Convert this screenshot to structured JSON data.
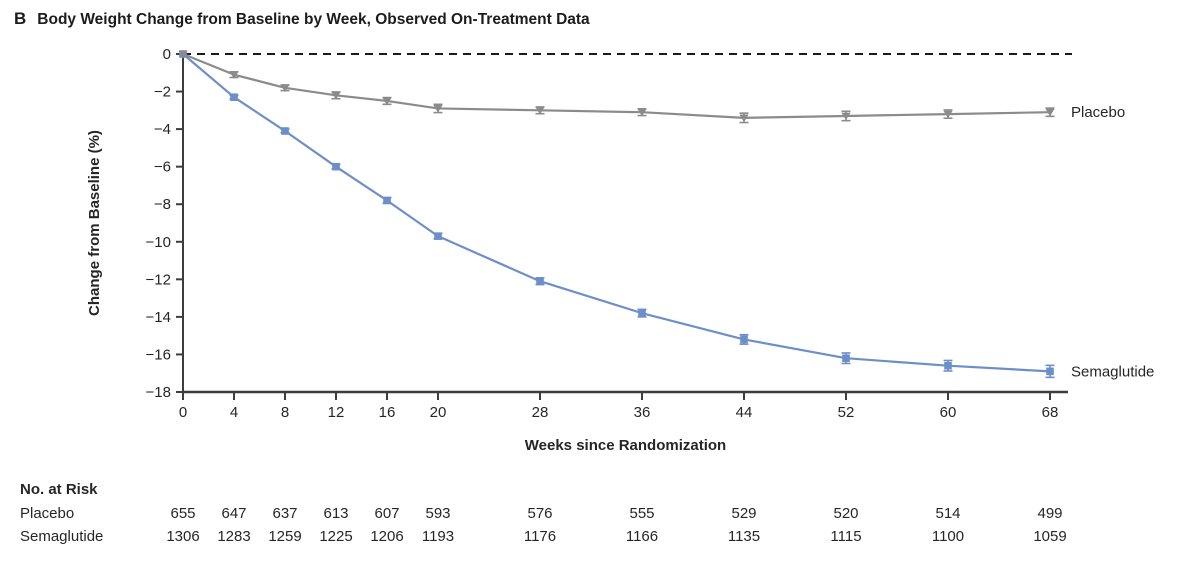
{
  "header": {
    "panel_label": "B",
    "title": "Body Weight Change from Baseline by Week, Observed On-Treatment Data"
  },
  "chart_data": {
    "type": "line",
    "title": "Body Weight Change from Baseline by Week, Observed On-Treatment Data",
    "xlabel": "Weeks since Randomization",
    "ylabel": "Change from Baseline (%)",
    "x": [
      0,
      4,
      8,
      12,
      16,
      20,
      28,
      36,
      44,
      52,
      60,
      68
    ],
    "xlim": [
      0,
      68
    ],
    "ylim": [
      -18,
      0
    ],
    "xtick_labels": [
      "0",
      "4",
      "8",
      "12",
      "16",
      "20",
      "28",
      "36",
      "44",
      "52",
      "60",
      "68"
    ],
    "ytick_values": [
      0,
      -2,
      -4,
      -6,
      -8,
      -10,
      -12,
      -14,
      -16,
      -18
    ],
    "ytick_labels": [
      "0",
      "−2",
      "−4",
      "−6",
      "−8",
      "−10",
      "−12",
      "−14",
      "−16",
      "−18"
    ],
    "grid": false,
    "zero_reference_line_dashed": true,
    "legend_position": "right-of-line-end",
    "series": [
      {
        "name": "Placebo",
        "color": "#8b8b8b",
        "marker": "triangle-down",
        "values": [
          0,
          -1.1,
          -1.8,
          -2.2,
          -2.5,
          -2.9,
          -3.0,
          -3.1,
          -3.4,
          -3.3,
          -3.2,
          -3.1
        ],
        "errors": [
          0,
          0.15,
          0.15,
          0.18,
          0.18,
          0.22,
          0.18,
          0.18,
          0.25,
          0.25,
          0.22,
          0.22
        ]
      },
      {
        "name": "Semaglutide",
        "color": "#6d8fc9",
        "marker": "square",
        "values": [
          0,
          -2.3,
          -4.1,
          -6.0,
          -7.8,
          -9.7,
          -12.1,
          -13.8,
          -15.2,
          -16.2,
          -16.6,
          -16.9
        ],
        "errors": [
          0,
          0.1,
          0.1,
          0.12,
          0.15,
          0.15,
          0.18,
          0.2,
          0.25,
          0.28,
          0.28,
          0.32
        ]
      }
    ]
  },
  "at_risk": {
    "header": "No. at Risk",
    "rows": [
      {
        "label": "Placebo",
        "values": [
          "655",
          "647",
          "637",
          "613",
          "607",
          "593",
          "576",
          "555",
          "529",
          "520",
          "514",
          "499"
        ]
      },
      {
        "label": "Semaglutide",
        "values": [
          "1306",
          "1283",
          "1259",
          "1225",
          "1206",
          "1193",
          "1176",
          "1166",
          "1135",
          "1115",
          "1100",
          "1059"
        ]
      }
    ]
  },
  "colors": {
    "axis": "#3d3d3d",
    "text": "#262626",
    "zero_line": "#1a1a1a"
  }
}
